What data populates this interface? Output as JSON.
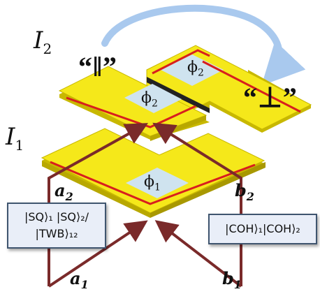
{
  "interfaces": {
    "upper": {
      "symbol": "I",
      "sub": "2"
    },
    "lower": {
      "symbol": "I",
      "sub": "1"
    }
  },
  "configurations": {
    "parallel": "“‖”",
    "perpendicular": "“⊥”"
  },
  "phases": {
    "top_left": {
      "symbol": "ϕ",
      "sub": "2"
    },
    "top_right": {
      "symbol": "ϕ",
      "sub": "2"
    },
    "bottom": {
      "symbol": "ϕ",
      "sub": "1"
    }
  },
  "beams": {
    "a2": {
      "symbol": "a",
      "sub": "2"
    },
    "b2": {
      "symbol": "b",
      "sub": "2"
    },
    "a1": {
      "symbol": "a",
      "sub": "1"
    },
    "b1": {
      "symbol": "b",
      "sub": "1"
    }
  },
  "input_states": {
    "left_line1": "|SQ⟩₁ |SQ⟩₂/",
    "left_line2": "|TWB⟩₁₂",
    "right_line1": "|COH⟩₁|COH⟩₂"
  },
  "colors": {
    "plate": "#f5e81a",
    "plate_edge": "#c8b800",
    "red_line": "#d81e1e",
    "beam": "#7a2a2a",
    "rotate_arrow": "#a9c9ee",
    "phase_box": "#cfe3ef"
  }
}
